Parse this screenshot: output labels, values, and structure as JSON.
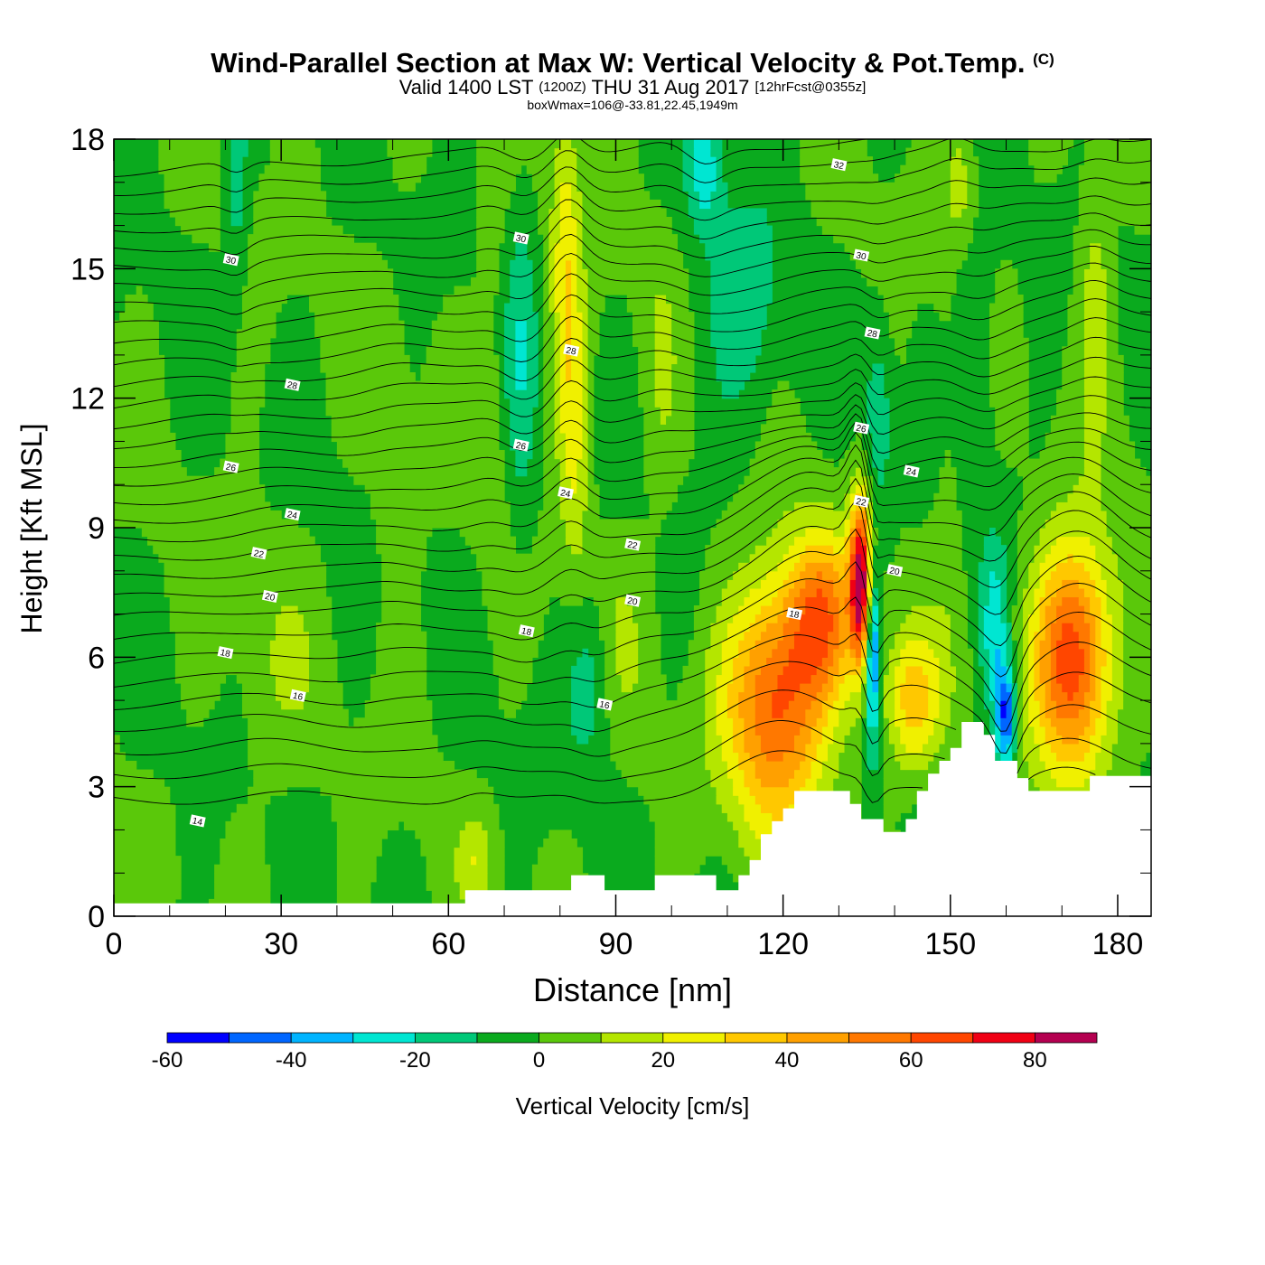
{
  "header": {
    "title": "Wind-Parallel Section at Max W: Vertical Velocity & Pot.Temp.",
    "copyright": "(C)",
    "subtitle_main": "Valid 1400 LST",
    "subtitle_utc": "(1200Z)",
    "subtitle_date": "THU 31 Aug 2017",
    "subtitle_fcst": "[12hrFcst@0355z]",
    "box_info": "boxWmax=106@-33.81,22.45,1949m"
  },
  "chart_data": {
    "type": "heatmap",
    "title": "Wind-Parallel Section at Max W: Vertical Velocity & Pot.Temp.",
    "xlabel": "Distance [nm]",
    "ylabel": "Height [Kft MSL]",
    "xlim": [
      0,
      186
    ],
    "ylim": [
      0,
      18
    ],
    "x_ticks": [
      "0",
      "30",
      "60",
      "90",
      "120",
      "150",
      "180"
    ],
    "x_tick_values": [
      0,
      30,
      60,
      90,
      120,
      150,
      180
    ],
    "y_ticks": [
      "0",
      "3",
      "6",
      "9",
      "12",
      "15",
      "18"
    ],
    "y_tick_values": [
      0,
      3,
      6,
      9,
      12,
      15,
      18
    ],
    "colorbar": {
      "label": "Vertical Velocity [cm/s]",
      "tick_labels": [
        "-60",
        "-40",
        "-20",
        "0",
        "20",
        "40",
        "60",
        "80"
      ],
      "tick_values": [
        -60,
        -40,
        -20,
        0,
        20,
        40,
        60,
        80
      ],
      "levels": [
        -60,
        -50,
        -40,
        -30,
        -20,
        -10,
        0,
        10,
        20,
        30,
        40,
        50,
        60,
        70,
        80,
        90
      ],
      "colors": [
        "#0000ff",
        "#0066ff",
        "#00b4ff",
        "#00e6d2",
        "#00c878",
        "#0aaa1e",
        "#5ac80a",
        "#b4e600",
        "#f0f000",
        "#ffc800",
        "#ffa000",
        "#ff7800",
        "#ff4600",
        "#f00014",
        "#b40050"
      ]
    },
    "background_color": "#0aaa1e",
    "terrain_profile": {
      "x": [
        0,
        63,
        63,
        82,
        82,
        88,
        88,
        97,
        97,
        108,
        108,
        112,
        112,
        114,
        114,
        116,
        116,
        118,
        118,
        120,
        120,
        122,
        122,
        124,
        124,
        132,
        132,
        134,
        134,
        138,
        138,
        142,
        142,
        144,
        144,
        146,
        146,
        148,
        148,
        150,
        150,
        152,
        152,
        156,
        156,
        158,
        158,
        162,
        162,
        164,
        164,
        175,
        175,
        186
      ],
      "y": [
        0.3,
        0.3,
        0.6,
        0.6,
        0.95,
        0.95,
        0.6,
        0.6,
        0.95,
        0.95,
        0.6,
        0.6,
        0.95,
        0.95,
        1.3,
        1.3,
        1.9,
        1.9,
        2.2,
        2.2,
        2.5,
        2.5,
        2.9,
        2.9,
        2.9,
        2.9,
        2.6,
        2.6,
        2.25,
        2.25,
        1.95,
        1.95,
        2.25,
        2.25,
        2.9,
        2.9,
        3.3,
        3.3,
        3.6,
        3.6,
        3.9,
        3.9,
        4.5,
        4.5,
        4.2,
        4.2,
        3.6,
        3.6,
        3.2,
        3.2,
        2.9,
        2.9,
        3.25,
        3.25
      ]
    },
    "updraft_cells": [
      {
        "x": 119,
        "y": 5.0,
        "rx": 9,
        "ry": 2.8,
        "peak": 65
      },
      {
        "x": 172,
        "y": 6.0,
        "rx": 7,
        "ry": 2.6,
        "peak": 70
      },
      {
        "x": 134,
        "y": 7.8,
        "rx": 2,
        "ry": 1.9,
        "peak": 85
      },
      {
        "x": 127,
        "y": 7.0,
        "rx": 6,
        "ry": 1.8,
        "peak": 45
      },
      {
        "x": 143,
        "y": 5.0,
        "rx": 5,
        "ry": 1.6,
        "peak": 35
      },
      {
        "x": 81,
        "y": 15.0,
        "rx": 2.5,
        "ry": 4.5,
        "peak": 25
      },
      {
        "x": 83,
        "y": 11.0,
        "rx": 2.5,
        "ry": 3.5,
        "peak": 18
      }
    ],
    "downdraft_cells": [
      {
        "x": 136,
        "y": 6.2,
        "rx": 1.3,
        "ry": 2.2,
        "peak": -55
      },
      {
        "x": 160,
        "y": 4.6,
        "rx": 1.8,
        "ry": 1.2,
        "peak": -50
      },
      {
        "x": 158,
        "y": 6.5,
        "rx": 2.5,
        "ry": 2.0,
        "peak": -25
      },
      {
        "x": 106,
        "y": 17.4,
        "rx": 3,
        "ry": 1.3,
        "peak": -25
      },
      {
        "x": 22,
        "y": 17.0,
        "rx": 2,
        "ry": 2.5,
        "peak": -15
      },
      {
        "x": 73,
        "y": 13.0,
        "rx": 3,
        "ry": 4.5,
        "peak": -15
      },
      {
        "x": 85,
        "y": 5.5,
        "rx": 4,
        "ry": 2.0,
        "peak": -15
      },
      {
        "x": 113,
        "y": 14.0,
        "rx": 8,
        "ry": 3.0,
        "peak": -15
      },
      {
        "x": 137,
        "y": 11.5,
        "rx": 2.5,
        "ry": 2.2,
        "peak": -18
      },
      {
        "x": 154,
        "y": 13.0,
        "rx": 4,
        "ry": 3.0,
        "peak": -15
      }
    ],
    "weak_up_cells": [
      {
        "x": 28,
        "y": 5.5,
        "rx": 7,
        "ry": 2.7,
        "peak": 8
      },
      {
        "x": 50,
        "y": 10.5,
        "rx": 4,
        "ry": 4,
        "peak": 6
      },
      {
        "x": 65,
        "y": 1.3,
        "rx": 3,
        "ry": 1.0,
        "peak": 15
      },
      {
        "x": 68,
        "y": 13.0,
        "rx": 3,
        "ry": 4,
        "peak": 7
      },
      {
        "x": 98,
        "y": 12.5,
        "rx": 3,
        "ry": 4,
        "peak": 7
      },
      {
        "x": 92,
        "y": 6.5,
        "rx": 5,
        "ry": 2.5,
        "peak": 6
      },
      {
        "x": 150,
        "y": 11.0,
        "rx": 3,
        "ry": 4,
        "peak": 8
      },
      {
        "x": 176,
        "y": 14.5,
        "rx": 3,
        "ry": 3.0,
        "peak": 15
      },
      {
        "x": 152,
        "y": 17.0,
        "rx": 3,
        "ry": 1.5,
        "peak": 15
      }
    ],
    "theta_contours": {
      "start_heights": [
        2.7,
        3.3,
        3.85,
        4.4,
        4.9,
        5.4,
        5.9,
        6.4,
        6.9,
        7.35,
        7.8,
        8.25,
        8.7,
        9.15,
        9.6,
        10.05,
        10.5,
        10.95,
        11.4,
        11.85,
        12.3,
        12.75,
        13.2,
        13.65,
        14.1,
        14.55,
        15.0,
        15.45,
        15.9,
        16.35,
        16.8,
        17.25
      ],
      "labels": [
        {
          "text": "14",
          "x": 15,
          "y": 2.2
        },
        {
          "text": "16",
          "x": 33,
          "y": 5.1
        },
        {
          "text": "16",
          "x": 88,
          "y": 4.9
        },
        {
          "text": "18",
          "x": 20,
          "y": 6.1
        },
        {
          "text": "18",
          "x": 74,
          "y": 6.6
        },
        {
          "text": "18",
          "x": 122,
          "y": 7.0
        },
        {
          "text": "20",
          "x": 28,
          "y": 7.4
        },
        {
          "text": "20",
          "x": 93,
          "y": 7.3
        },
        {
          "text": "20",
          "x": 140,
          "y": 8.0
        },
        {
          "text": "22",
          "x": 26,
          "y": 8.4
        },
        {
          "text": "22",
          "x": 93,
          "y": 8.6
        },
        {
          "text": "22",
          "x": 134,
          "y": 9.6
        },
        {
          "text": "24",
          "x": 32,
          "y": 9.3
        },
        {
          "text": "24",
          "x": 81,
          "y": 9.8
        },
        {
          "text": "24",
          "x": 143,
          "y": 10.3
        },
        {
          "text": "26",
          "x": 21,
          "y": 10.4
        },
        {
          "text": "26",
          "x": 73,
          "y": 10.9
        },
        {
          "text": "26",
          "x": 134,
          "y": 11.3
        },
        {
          "text": "28",
          "x": 32,
          "y": 12.3
        },
        {
          "text": "28",
          "x": 82,
          "y": 13.1
        },
        {
          "text": "28",
          "x": 136,
          "y": 13.5
        },
        {
          "text": "30",
          "x": 21,
          "y": 15.2
        },
        {
          "text": "30",
          "x": 73,
          "y": 15.7
        },
        {
          "text": "30",
          "x": 134,
          "y": 15.3
        },
        {
          "text": "32",
          "x": 130,
          "y": 17.4
        }
      ]
    }
  }
}
